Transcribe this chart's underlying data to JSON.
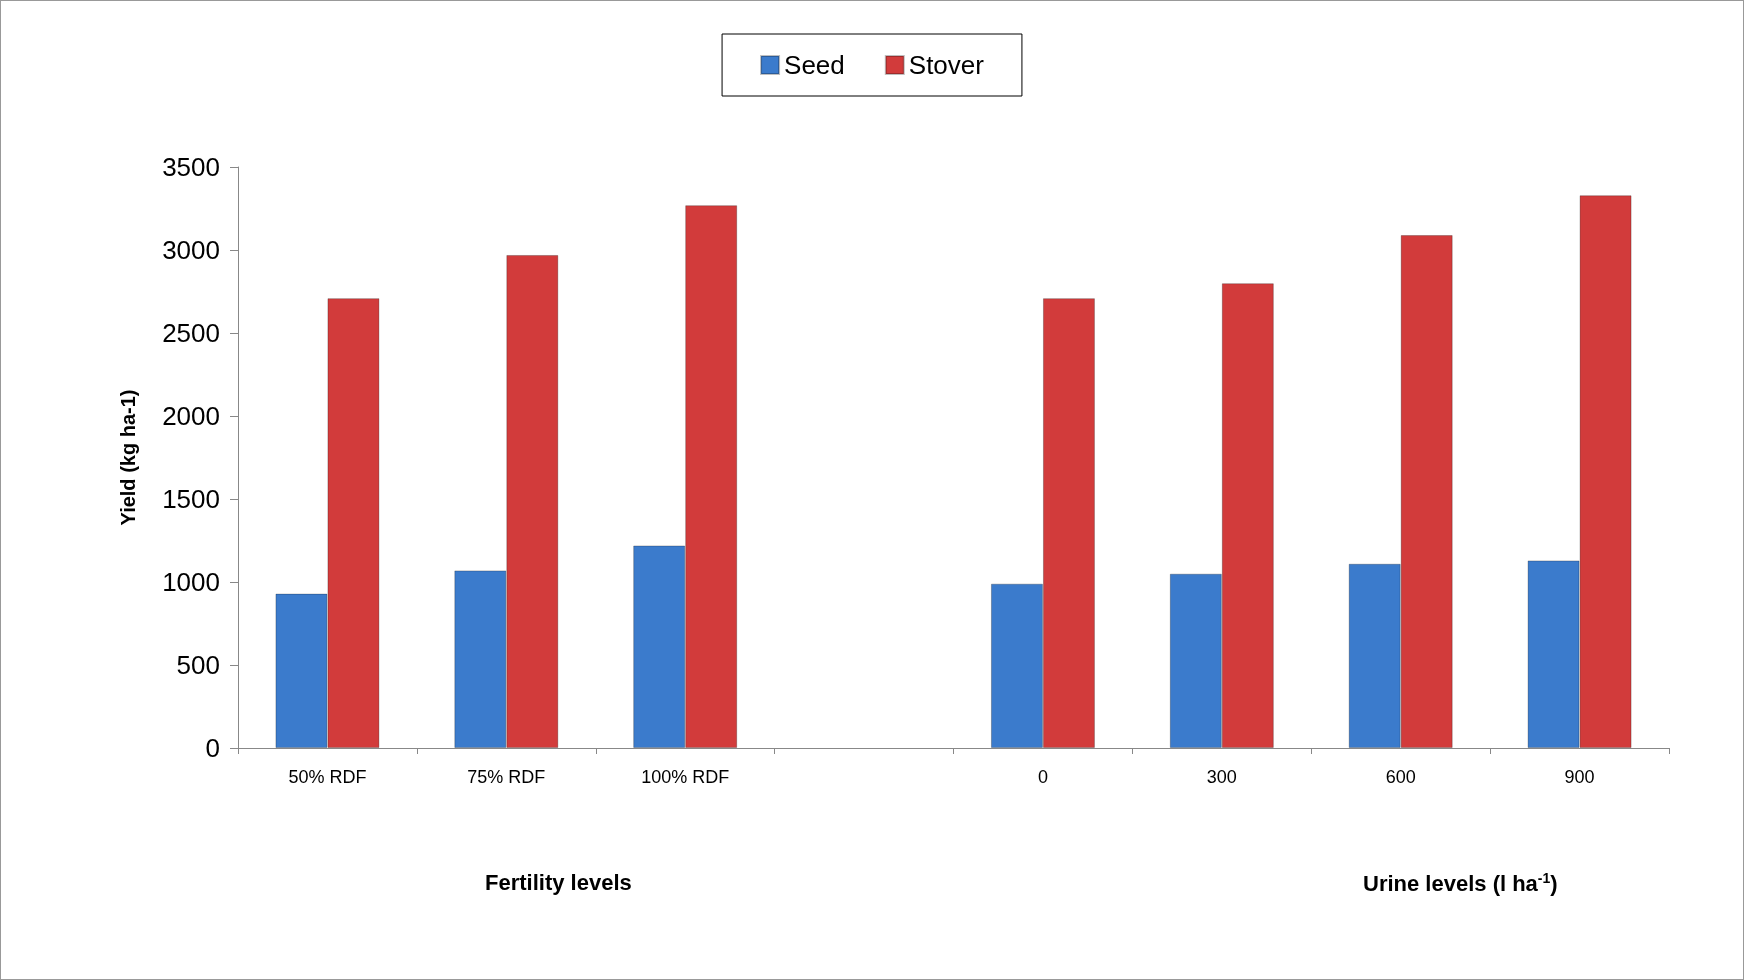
{
  "chart_data": {
    "type": "bar",
    "categories": [
      "50% RDF",
      "75% RDF",
      "100% RDF",
      null,
      "0",
      "300",
      "600",
      "900"
    ],
    "series": [
      {
        "name": "Seed",
        "color": "#3b7bcc",
        "values": [
          930,
          1070,
          1220,
          null,
          990,
          1050,
          1110,
          1130
        ]
      },
      {
        "name": "Stover",
        "color": "#d23b3b",
        "values": [
          2710,
          2970,
          3270,
          null,
          2710,
          2800,
          3090,
          3330
        ]
      }
    ],
    "ylabel": "Yield (kg ha-1)",
    "ylim": [
      0,
      3500
    ],
    "yticks": [
      0,
      500,
      1000,
      1500,
      2000,
      2500,
      3000,
      3500
    ],
    "grid": false,
    "legend": "top",
    "annotations": [
      "Fertility levels",
      "Urine levels (l ha$^{-1}$)"
    ]
  }
}
